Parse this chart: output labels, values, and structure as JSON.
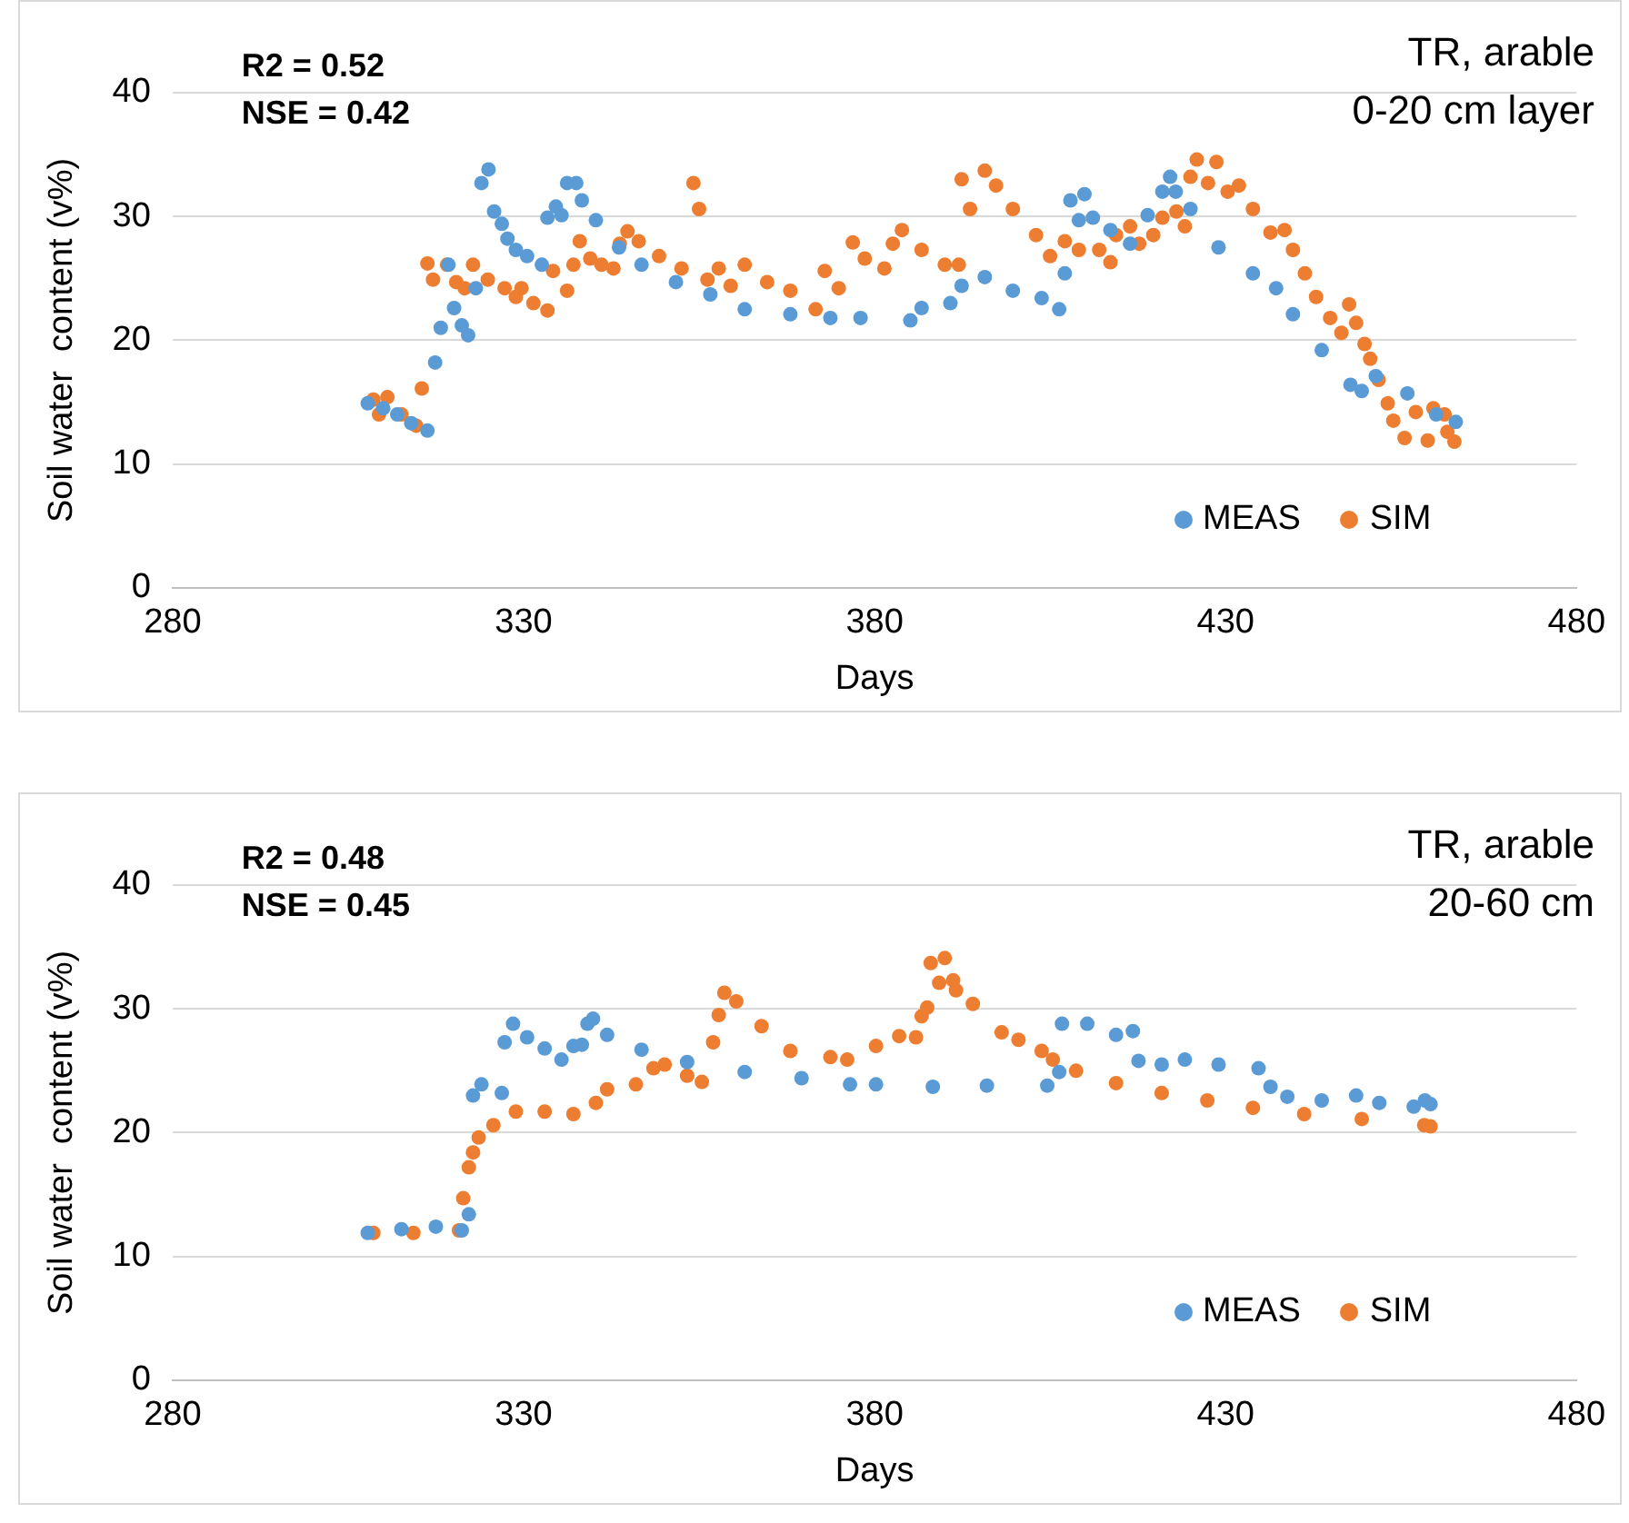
{
  "chart_data": [
    {
      "type": "scatter",
      "xlabel": "Days",
      "ylabel": "Soil water  content (v%)",
      "annotations": [
        "R2 = 0.52",
        "NSE = 0.42",
        "TR, arable",
        "0-20 cm layer"
      ],
      "xlim": [
        280,
        480
      ],
      "xticks": [
        280,
        330,
        380,
        430,
        480
      ],
      "ylim": [
        0,
        40
      ],
      "yticks": [
        0,
        10,
        20,
        30,
        40
      ],
      "grid": "y",
      "legend": "bottom right",
      "marker": "circle",
      "series": [
        {
          "name": "MEAS",
          "color": "#5b9bd5",
          "x": [
            307.8,
            310,
            312,
            314,
            316.3,
            317.4,
            318.2,
            319.3,
            320.1,
            321.2,
            322.1,
            323.2,
            324.0,
            325.0,
            325.8,
            326.9,
            327.7,
            328.9,
            330.5,
            332.6,
            333.4,
            334.6,
            335.4,
            336.2,
            337.5,
            338.3,
            340.3,
            343.6,
            346.8,
            351.7,
            356.6,
            361.5,
            368.0,
            373.7,
            378,
            385.1,
            386.7,
            390.8,
            392.4,
            395.7,
            399.7,
            403.8,
            406.3,
            407.1,
            407.9,
            409.1,
            409.9,
            411.1,
            413.6,
            416.4,
            418.9,
            421.0,
            422.1,
            422.9,
            425.0,
            429.0,
            433.9,
            437.2,
            439.6,
            443.7,
            447.8,
            449.4,
            451.4,
            455.9,
            460.0,
            462.8
          ],
          "values": [
            14.9,
            14.5,
            14.0,
            13.3,
            12.7,
            18.2,
            21.0,
            26.1,
            22.6,
            21.2,
            20.4,
            24.2,
            32.7,
            33.8,
            30.4,
            29.4,
            28.2,
            27.3,
            26.8,
            26.1,
            29.9,
            30.8,
            30.1,
            32.7,
            32.7,
            31.3,
            29.7,
            27.5,
            26.1,
            24.7,
            23.7,
            22.5,
            22.1,
            21.8,
            21.8,
            21.6,
            22.6,
            23.0,
            24.4,
            25.1,
            24.0,
            23.4,
            22.5,
            25.4,
            31.3,
            29.7,
            31.8,
            29.9,
            28.9,
            27.8,
            30.1,
            32.0,
            33.2,
            32.0,
            30.6,
            27.5,
            25.4,
            24.2,
            22.1,
            19.2,
            16.4,
            15.9,
            17.1,
            15.7,
            14.0,
            13.4
          ]
        },
        {
          "name": "SIM",
          "color": "#ed7d31",
          "x": [
            308.6,
            309.4,
            310.6,
            312.6,
            314.7,
            315.5,
            316.3,
            317.1,
            319.1,
            320.4,
            321.6,
            322.8,
            324.9,
            327.3,
            328.9,
            329.7,
            331.4,
            333.4,
            334.2,
            336.2,
            337.1,
            338.0,
            339.5,
            341.1,
            342.8,
            343.7,
            344.8,
            346.4,
            349.3,
            352.5,
            354.2,
            355.0,
            356.2,
            357.8,
            359.5,
            361.5,
            364.7,
            368.0,
            371.6,
            372.9,
            374.9,
            376.9,
            378.6,
            381.4,
            382.6,
            383.9,
            386.7,
            390.0,
            392.0,
            392.4,
            393.6,
            395.7,
            397.3,
            399.7,
            403.0,
            405.0,
            407.1,
            409.1,
            412.0,
            413.6,
            414.4,
            416.4,
            417.7,
            419.7,
            421.0,
            423.0,
            424.2,
            425.0,
            425.9,
            427.5,
            428.7,
            430.3,
            431.9,
            433.9,
            436.4,
            438.4,
            439.6,
            441.3,
            442.9,
            444.9,
            446.5,
            447.6,
            448.6,
            449.8,
            450.6,
            451.8,
            453.1,
            453.9,
            455.5,
            457.1,
            458.8,
            459.6,
            461.2,
            461.6,
            462.6
          ],
          "values": [
            15.2,
            14.0,
            15.4,
            14.0,
            13.1,
            16.1,
            26.2,
            24.9,
            26.1,
            24.7,
            24.2,
            26.1,
            24.9,
            24.2,
            23.5,
            24.2,
            23.0,
            22.4,
            25.6,
            24.0,
            26.1,
            28.0,
            26.6,
            26.1,
            25.8,
            27.8,
            28.8,
            28.0,
            26.8,
            25.8,
            32.7,
            30.6,
            24.9,
            25.8,
            24.4,
            26.1,
            24.7,
            24.0,
            22.5,
            25.6,
            24.2,
            27.9,
            26.6,
            25.8,
            27.8,
            28.9,
            27.3,
            26.1,
            26.1,
            33.0,
            30.6,
            33.7,
            32.5,
            30.6,
            28.5,
            26.8,
            28.0,
            27.3,
            27.3,
            26.3,
            28.5,
            29.2,
            27.8,
            28.5,
            29.9,
            30.4,
            29.2,
            33.2,
            34.6,
            32.7,
            34.4,
            32.0,
            32.5,
            30.6,
            28.7,
            28.9,
            27.3,
            25.4,
            23.5,
            21.8,
            20.6,
            22.9,
            21.4,
            19.7,
            18.5,
            16.8,
            14.9,
            13.5,
            12.1,
            14.2,
            11.9,
            14.5,
            14.0,
            12.6,
            11.8
          ]
        }
      ]
    },
    {
      "type": "scatter",
      "xlabel": "Days",
      "ylabel": "Soil water  content (v%)",
      "annotations": [
        "R2 = 0.48",
        "NSE = 0.45",
        "TR, arable",
        "20-60 cm"
      ],
      "xlim": [
        280,
        480
      ],
      "xticks": [
        280,
        330,
        380,
        430,
        480
      ],
      "ylim": [
        0,
        40
      ],
      "yticks": [
        0,
        10,
        20,
        30,
        40
      ],
      "grid": "y",
      "legend": "bottom right",
      "marker": "circle",
      "series": [
        {
          "name": "MEAS",
          "color": "#5b9bd5",
          "x": [
            307.8,
            312.6,
            317.5,
            321.2,
            322.2,
            322.8,
            324.0,
            326.9,
            327.3,
            328.5,
            330.5,
            333.0,
            335.4,
            337.1,
            338.3,
            339.1,
            339.9,
            341.9,
            346.8,
            353.3,
            361.5,
            369.6,
            376.5,
            380.2,
            388.3,
            396,
            404.6,
            406.3,
            406.7,
            410.3,
            414.4,
            416.8,
            417.6,
            420.9,
            424.2,
            429.0,
            434.7,
            436.4,
            438.8,
            443.7,
            448.6,
            451.9,
            456.8,
            458.4,
            459.2
          ],
          "values": [
            11.9,
            12.2,
            12.4,
            12.1,
            13.4,
            23.0,
            23.9,
            23.2,
            27.3,
            28.8,
            27.7,
            26.8,
            25.9,
            27.0,
            27.1,
            28.8,
            29.2,
            27.9,
            26.7,
            25.7,
            24.9,
            24.4,
            23.9,
            23.9,
            23.7,
            23.8,
            23.8,
            24.9,
            28.8,
            28.8,
            27.9,
            28.2,
            25.8,
            25.5,
            25.9,
            25.5,
            25.2,
            23.7,
            22.9,
            22.6,
            23.0,
            22.4,
            22.1,
            22.6,
            22.3
          ]
        },
        {
          "name": "SIM",
          "color": "#ed7d31",
          "x": [
            308.6,
            314.3,
            320.8,
            321.4,
            322.2,
            322.8,
            323.6,
            325.7,
            328.9,
            333.0,
            337.1,
            340.3,
            341.9,
            346.0,
            348.5,
            350.1,
            353.3,
            355.4,
            357.0,
            357.8,
            358.6,
            360.3,
            363.9,
            368.0,
            373.7,
            376.1,
            380.2,
            383.5,
            385.9,
            386.7,
            387.5,
            388.0,
            389.2,
            390.0,
            391.2,
            391.6,
            394.0,
            398.1,
            400.5,
            403.8,
            405.4,
            408.7,
            414.4,
            420.9,
            427.4,
            433.9,
            441.2,
            449.4,
            458.3,
            459.2
          ],
          "values": [
            11.9,
            11.9,
            12.1,
            14.7,
            17.2,
            18.4,
            19.6,
            20.6,
            21.7,
            21.7,
            21.5,
            22.4,
            23.5,
            23.9,
            25.2,
            25.5,
            24.6,
            24.1,
            27.3,
            29.5,
            31.3,
            30.6,
            28.6,
            26.6,
            26.1,
            25.9,
            27.0,
            27.8,
            27.7,
            29.4,
            30.1,
            33.7,
            32.1,
            34.1,
            32.3,
            31.5,
            30.4,
            28.1,
            27.5,
            26.6,
            25.9,
            25.0,
            24.0,
            23.2,
            22.6,
            22.0,
            21.5,
            21.1,
            20.6,
            20.5
          ]
        }
      ]
    }
  ]
}
